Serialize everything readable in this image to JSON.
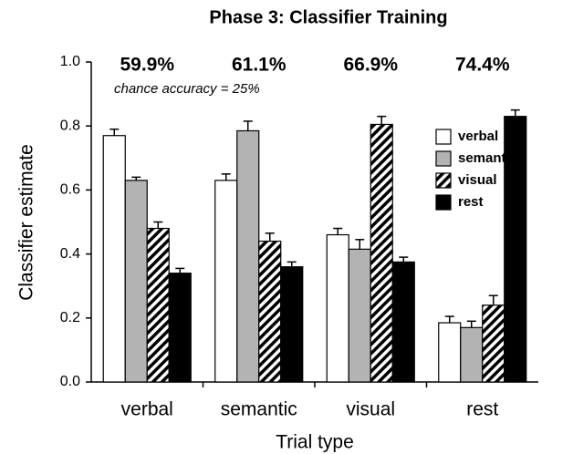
{
  "chart_data": {
    "type": "bar",
    "title": "Phase 3: Classifier Training",
    "ylabel": "Classifier estimate",
    "xlabel": "Trial type",
    "categories": [
      "verbal",
      "semantic",
      "visual",
      "rest"
    ],
    "annotations": [
      "59.9%",
      "61.1%",
      "66.9%",
      "74.4%"
    ],
    "note": "chance accuracy = 25%",
    "series": [
      {
        "name": "verbal",
        "color": "#ffffff",
        "values": [
          0.77,
          0.63,
          0.46,
          0.185
        ],
        "errors": [
          0.02,
          0.02,
          0.02,
          0.02
        ]
      },
      {
        "name": "semantic",
        "color": "#b3b3b3",
        "values": [
          0.63,
          0.785,
          0.415,
          0.17
        ],
        "errors": [
          0.01,
          0.03,
          0.03,
          0.02
        ]
      },
      {
        "name": "visual",
        "color": "#000000",
        "pattern": "hatch",
        "values": [
          0.48,
          0.44,
          0.805,
          0.24
        ],
        "errors": [
          0.02,
          0.025,
          0.025,
          0.03
        ]
      },
      {
        "name": "rest",
        "color": "#000000",
        "values": [
          0.34,
          0.36,
          0.375,
          0.83
        ],
        "errors": [
          0.015,
          0.015,
          0.015,
          0.02
        ]
      }
    ],
    "ylim": [
      0,
      1
    ],
    "yticks": [
      {
        "value": 0,
        "label": "0.0"
      },
      0.2,
      0.4,
      0.6,
      0.8,
      {
        "value": 1,
        "label": "1.0"
      }
    ],
    "legend": "upper right"
  }
}
